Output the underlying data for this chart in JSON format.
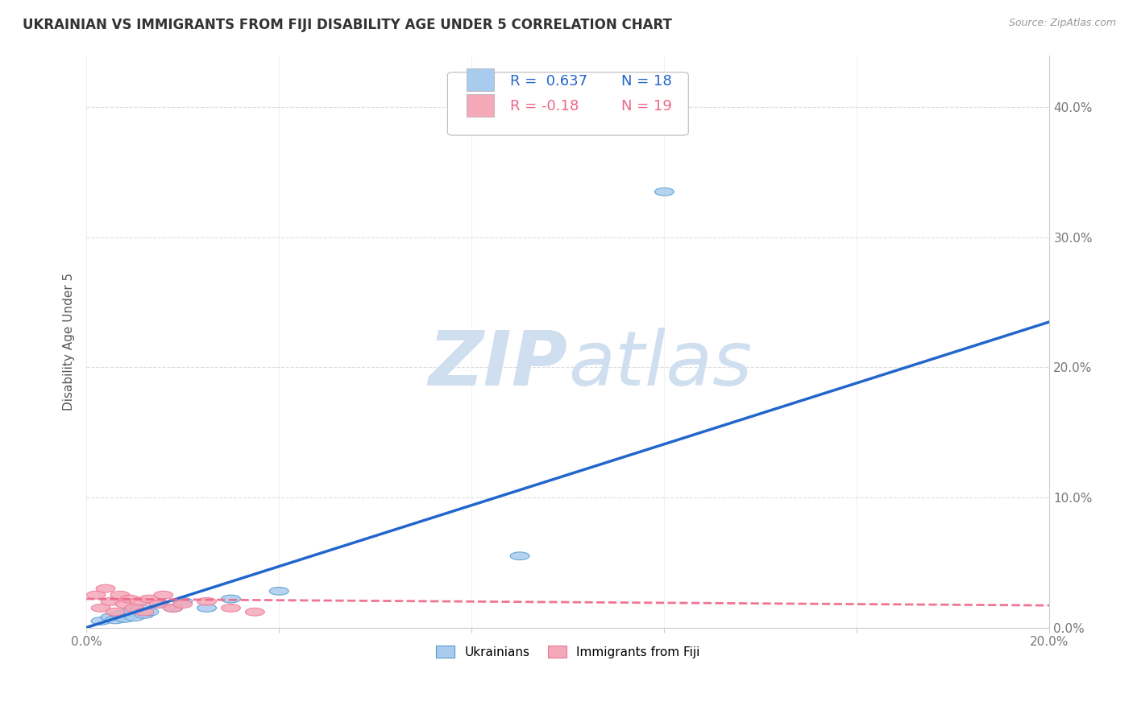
{
  "title": "UKRAINIAN VS IMMIGRANTS FROM FIJI DISABILITY AGE UNDER 5 CORRELATION CHART",
  "source_text": "Source: ZipAtlas.com",
  "ylabel": "Disability Age Under 5",
  "xlim": [
    0.0,
    0.2
  ],
  "ylim": [
    0.0,
    0.44
  ],
  "xtick_positions": [
    0.0,
    0.04,
    0.08,
    0.12,
    0.16,
    0.2
  ],
  "xtick_labels": [
    "0.0%",
    "",
    "",
    "",
    "",
    "20.0%"
  ],
  "ytick_positions": [
    0.0,
    0.1,
    0.2,
    0.3,
    0.4
  ],
  "ytick_labels": [
    "0.0%",
    "10.0%",
    "20.0%",
    "30.0%",
    "40.0%"
  ],
  "R_blue": 0.637,
  "N_blue": 18,
  "R_pink": -0.18,
  "N_pink": 19,
  "blue_color": "#A8CCEE",
  "pink_color": "#F4A8B8",
  "blue_edge_color": "#5599CC",
  "pink_edge_color": "#EE7799",
  "blue_line_color": "#2266CC",
  "pink_line_color": "#EE6688",
  "grid_color": "#DDDDDD",
  "background_color": "#FFFFFF",
  "watermark_color": "#D0DFF0",
  "blue_line_x": [
    0.0,
    0.2
  ],
  "blue_line_y": [
    0.0,
    0.235
  ],
  "pink_line_x": [
    0.0,
    0.2
  ],
  "pink_line_y": [
    0.022,
    0.017
  ],
  "blue_scatter_x": [
    0.003,
    0.005,
    0.006,
    0.007,
    0.008,
    0.009,
    0.01,
    0.011,
    0.012,
    0.013,
    0.015,
    0.018,
    0.02,
    0.025,
    0.03,
    0.04,
    0.09,
    0.12
  ],
  "blue_scatter_y": [
    0.005,
    0.008,
    0.006,
    0.01,
    0.007,
    0.012,
    0.008,
    0.015,
    0.01,
    0.012,
    0.018,
    0.015,
    0.02,
    0.015,
    0.022,
    0.028,
    0.055,
    0.335
  ],
  "pink_scatter_x": [
    0.002,
    0.003,
    0.004,
    0.005,
    0.006,
    0.007,
    0.008,
    0.009,
    0.01,
    0.011,
    0.012,
    0.013,
    0.015,
    0.016,
    0.018,
    0.02,
    0.025,
    0.03,
    0.035
  ],
  "pink_scatter_y": [
    0.025,
    0.015,
    0.03,
    0.02,
    0.012,
    0.025,
    0.018,
    0.022,
    0.015,
    0.02,
    0.012,
    0.022,
    0.018,
    0.025,
    0.015,
    0.018,
    0.02,
    0.015,
    0.012
  ],
  "title_fontsize": 12,
  "axis_label_fontsize": 11,
  "tick_fontsize": 11,
  "legend_fontsize": 13
}
